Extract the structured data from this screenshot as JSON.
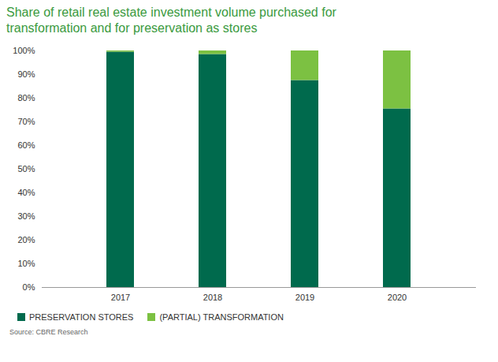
{
  "chart_data": {
    "type": "bar",
    "title": "Share of retail real estate investment volume purchased for transformation and for preservation as stores",
    "categories": [
      "2017",
      "2018",
      "2019",
      "2020"
    ],
    "series": [
      {
        "name": "PRESERVATION STORES",
        "color": "#006a4d",
        "values": [
          99.5,
          98.5,
          87.5,
          75.5
        ]
      },
      {
        "name": "(PARTIAL) TRANSFORMATION",
        "color": "#7cc142",
        "values": [
          0.5,
          1.5,
          12.5,
          24.5
        ]
      }
    ],
    "ylim": [
      0,
      100
    ],
    "yticks": [
      {
        "value": 0,
        "label": "0%"
      },
      {
        "value": 10,
        "label": "10%"
      },
      {
        "value": 20,
        "label": "20%"
      },
      {
        "value": 30,
        "label": "30%"
      },
      {
        "value": 40,
        "label": "40%"
      },
      {
        "value": 50,
        "label": "50%"
      },
      {
        "value": 60,
        "label": "60%"
      },
      {
        "value": 70,
        "label": "70%"
      },
      {
        "value": 80,
        "label": "80%"
      },
      {
        "value": 90,
        "label": "90%"
      },
      {
        "value": 100,
        "label": "100%"
      }
    ],
    "stacked": true,
    "grid": false,
    "legend": "bottom",
    "data_labels": false,
    "source": "Source: CBRE Research"
  }
}
